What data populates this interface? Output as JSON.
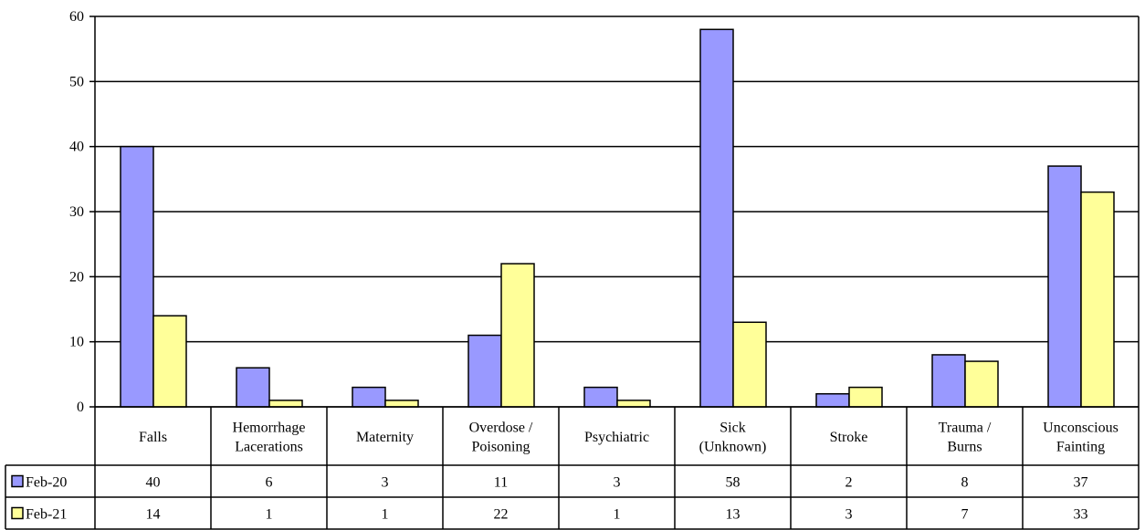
{
  "chart_data": {
    "type": "bar",
    "categories": [
      "Falls",
      "Hemorrhage\nLacerations",
      "Maternity",
      "Overdose /\nPoisoning",
      "Psychiatric",
      "Sick\n(Unknown)",
      "Stroke",
      "Trauma /\nBurns",
      "Unconscious\nFainting"
    ],
    "series": [
      {
        "name": "Feb-20",
        "color": "#9999ff",
        "values": [
          40,
          6,
          3,
          11,
          3,
          58,
          2,
          8,
          37
        ]
      },
      {
        "name": "Feb-21",
        "color": "#ffff99",
        "values": [
          14,
          1,
          1,
          22,
          1,
          13,
          3,
          7,
          33
        ]
      }
    ],
    "yticks": [
      "0",
      "10",
      "20",
      "30",
      "40",
      "50",
      "60"
    ],
    "ylim": [
      0,
      60
    ],
    "grid": true,
    "legend": "data-table-left",
    "data_table": true
  }
}
